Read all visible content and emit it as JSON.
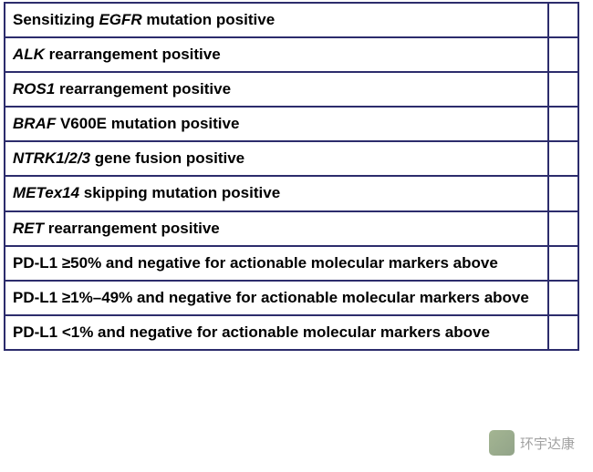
{
  "table": {
    "border_color": "#2c2c6c",
    "border_width": 2,
    "font_size": 17,
    "font_weight": "bold",
    "text_color": "#000000",
    "background_color": "#ffffff",
    "rows": [
      {
        "prefix": "Sensitizing ",
        "gene": "EGFR",
        "suffix": " mutation positive"
      },
      {
        "prefix": "",
        "gene": "ALK",
        "suffix": " rearrangement positive"
      },
      {
        "prefix": "",
        "gene": "ROS1",
        "suffix": " rearrangement positive"
      },
      {
        "prefix": "",
        "gene": "BRAF",
        "suffix": " V600E mutation positive"
      },
      {
        "prefix": "",
        "gene": "NTRK1/2/3",
        "suffix": " gene fusion positive"
      },
      {
        "prefix": "",
        "gene": "METex14",
        "suffix": " skipping mutation positive"
      },
      {
        "prefix": "",
        "gene": "RET",
        "suffix": " rearrangement positive"
      },
      {
        "prefix": "",
        "gene": "",
        "suffix": "PD-L1 ≥50% and negative for actionable molecular markers above"
      },
      {
        "prefix": "",
        "gene": "",
        "suffix": "PD-L1 ≥1%–49% and negative for actionable molecular markers above"
      },
      {
        "prefix": "",
        "gene": "",
        "suffix": "PD-L1 <1% and negative for actionable molecular markers above"
      }
    ]
  },
  "watermark": {
    "text": "环宇达康",
    "icon_color": "#4a6a2a"
  }
}
